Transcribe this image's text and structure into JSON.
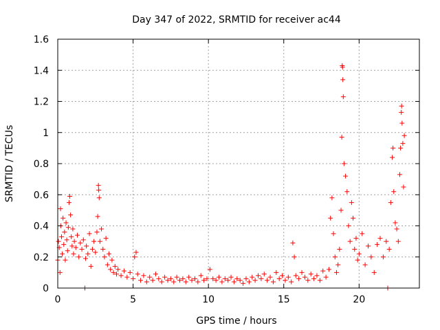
{
  "chart_data": {
    "type": "scatter",
    "title": "Day 347 of 2022, SRMTID for receiver ac44",
    "xlabel": "GPS time / hours",
    "ylabel": "SRMTID / TECUs",
    "xlim": [
      0,
      24
    ],
    "ylim": [
      0,
      1.6
    ],
    "x_ticks": [
      0,
      5,
      10,
      15,
      20
    ],
    "x_tick_labels": [
      "0",
      "5",
      "10",
      "15",
      "20"
    ],
    "y_ticks": [
      0,
      0.2,
      0.4,
      0.6,
      0.8,
      1.0,
      1.2,
      1.4,
      1.6
    ],
    "y_tick_labels": [
      "0",
      "0.2",
      "0.4",
      "0.6",
      "0.8",
      "1",
      "1.2",
      "1.4",
      "1.6"
    ],
    "grid": true,
    "marker": "+",
    "series": [
      {
        "name": "SRMTID",
        "color": "#ff0000",
        "points": [
          [
            0.0,
            0.18
          ],
          [
            0.05,
            0.3
          ],
          [
            0.1,
            0.26
          ],
          [
            0.15,
            0.1
          ],
          [
            0.18,
            0.51
          ],
          [
            0.2,
            0.4
          ],
          [
            0.25,
            0.33
          ],
          [
            0.3,
            0.22
          ],
          [
            0.35,
            0.45
          ],
          [
            0.4,
            0.28
          ],
          [
            0.45,
            0.36
          ],
          [
            0.5,
            0.18
          ],
          [
            0.55,
            0.42
          ],
          [
            0.6,
            0.31
          ],
          [
            0.65,
            0.24
          ],
          [
            0.7,
            0.39
          ],
          [
            0.75,
            0.55
          ],
          [
            0.8,
            0.59
          ],
          [
            0.85,
            0.47
          ],
          [
            0.9,
            0.33
          ],
          [
            0.95,
            0.27
          ],
          [
            1.0,
            0.38
          ],
          [
            1.05,
            0.22
          ],
          [
            1.1,
            0.3
          ],
          [
            1.2,
            0.26
          ],
          [
            1.3,
            0.34
          ],
          [
            1.4,
            0.2
          ],
          [
            1.5,
            0.29
          ],
          [
            1.6,
            0.25
          ],
          [
            1.7,
            0.31
          ],
          [
            1.8,
            0.0
          ],
          [
            1.85,
            0.19
          ],
          [
            1.9,
            0.27
          ],
          [
            2.0,
            0.22
          ],
          [
            2.1,
            0.35
          ],
          [
            2.2,
            0.14
          ],
          [
            2.3,
            0.25
          ],
          [
            2.4,
            0.3
          ],
          [
            2.5,
            0.23
          ],
          [
            2.6,
            0.36
          ],
          [
            2.65,
            0.46
          ],
          [
            2.7,
            0.66
          ],
          [
            2.72,
            0.63
          ],
          [
            2.75,
            0.58
          ],
          [
            2.8,
            0.3
          ],
          [
            2.9,
            0.38
          ],
          [
            3.0,
            0.25
          ],
          [
            3.1,
            0.2
          ],
          [
            3.2,
            0.32
          ],
          [
            3.3,
            0.15
          ],
          [
            3.4,
            0.22
          ],
          [
            3.5,
            0.12
          ],
          [
            3.6,
            0.18
          ],
          [
            3.7,
            0.1
          ],
          [
            3.8,
            0.14
          ],
          [
            3.9,
            0.09
          ],
          [
            4.0,
            0.12
          ],
          [
            4.2,
            0.08
          ],
          [
            4.4,
            0.11
          ],
          [
            4.6,
            0.07
          ],
          [
            4.8,
            0.1
          ],
          [
            5.0,
            0.06
          ],
          [
            5.1,
            0.2
          ],
          [
            5.2,
            0.23
          ],
          [
            5.3,
            0.09
          ],
          [
            5.5,
            0.05
          ],
          [
            5.7,
            0.08
          ],
          [
            5.9,
            0.04
          ],
          [
            6.1,
            0.07
          ],
          [
            6.3,
            0.05
          ],
          [
            6.5,
            0.09
          ],
          [
            6.7,
            0.06
          ],
          [
            6.9,
            0.04
          ],
          [
            7.1,
            0.07
          ],
          [
            7.3,
            0.05
          ],
          [
            7.5,
            0.06
          ],
          [
            7.7,
            0.04
          ],
          [
            7.9,
            0.07
          ],
          [
            8.1,
            0.05
          ],
          [
            8.3,
            0.06
          ],
          [
            8.5,
            0.04
          ],
          [
            8.7,
            0.07
          ],
          [
            8.9,
            0.05
          ],
          [
            9.1,
            0.06
          ],
          [
            9.3,
            0.04
          ],
          [
            9.5,
            0.08
          ],
          [
            9.7,
            0.05
          ],
          [
            9.9,
            0.06
          ],
          [
            10.1,
            0.12
          ],
          [
            10.3,
            0.06
          ],
          [
            10.5,
            0.05
          ],
          [
            10.7,
            0.07
          ],
          [
            10.9,
            0.04
          ],
          [
            11.1,
            0.06
          ],
          [
            11.3,
            0.05
          ],
          [
            11.5,
            0.07
          ],
          [
            11.7,
            0.04
          ],
          [
            11.9,
            0.06
          ],
          [
            12.1,
            0.05
          ],
          [
            12.3,
            0.03
          ],
          [
            12.5,
            0.06
          ],
          [
            12.7,
            0.04
          ],
          [
            12.9,
            0.07
          ],
          [
            13.1,
            0.05
          ],
          [
            13.3,
            0.08
          ],
          [
            13.5,
            0.06
          ],
          [
            13.7,
            0.09
          ],
          [
            13.9,
            0.05
          ],
          [
            14.1,
            0.07
          ],
          [
            14.3,
            0.04
          ],
          [
            14.5,
            0.1
          ],
          [
            14.7,
            0.06
          ],
          [
            14.9,
            0.08
          ],
          [
            15.1,
            0.05
          ],
          [
            15.3,
            0.07
          ],
          [
            15.5,
            0.04
          ],
          [
            15.6,
            0.29
          ],
          [
            15.7,
            0.2
          ],
          [
            15.8,
            0.08
          ],
          [
            16.0,
            0.06
          ],
          [
            16.2,
            0.1
          ],
          [
            16.4,
            0.07
          ],
          [
            16.6,
            0.05
          ],
          [
            16.8,
            0.09
          ],
          [
            17.0,
            0.06
          ],
          [
            17.2,
            0.08
          ],
          [
            17.4,
            0.05
          ],
          [
            17.6,
            0.11
          ],
          [
            17.8,
            0.07
          ],
          [
            18.0,
            0.12
          ],
          [
            18.1,
            0.45
          ],
          [
            18.2,
            0.58
          ],
          [
            18.3,
            0.35
          ],
          [
            18.4,
            0.2
          ],
          [
            18.5,
            0.1
          ],
          [
            18.6,
            0.15
          ],
          [
            18.7,
            0.25
          ],
          [
            18.8,
            0.5
          ],
          [
            18.85,
            0.97
          ],
          [
            18.88,
            1.43
          ],
          [
            18.9,
            1.42
          ],
          [
            18.92,
            1.34
          ],
          [
            18.95,
            1.23
          ],
          [
            19.0,
            0.8
          ],
          [
            19.1,
            0.72
          ],
          [
            19.2,
            0.62
          ],
          [
            19.3,
            0.4
          ],
          [
            19.4,
            0.3
          ],
          [
            19.5,
            0.55
          ],
          [
            19.6,
            0.45
          ],
          [
            19.7,
            0.25
          ],
          [
            19.8,
            0.32
          ],
          [
            19.9,
            0.18
          ],
          [
            20.0,
            0.22
          ],
          [
            20.2,
            0.35
          ],
          [
            20.4,
            0.15
          ],
          [
            20.6,
            0.27
          ],
          [
            20.8,
            0.2
          ],
          [
            21.0,
            0.1
          ],
          [
            21.2,
            0.28
          ],
          [
            21.4,
            0.32
          ],
          [
            21.6,
            0.2
          ],
          [
            21.8,
            0.3
          ],
          [
            21.9,
            0.0
          ],
          [
            22.0,
            0.25
          ],
          [
            22.1,
            0.55
          ],
          [
            22.2,
            0.84
          ],
          [
            22.25,
            0.9
          ],
          [
            22.3,
            0.62
          ],
          [
            22.4,
            0.42
          ],
          [
            22.5,
            0.38
          ],
          [
            22.6,
            0.3
          ],
          [
            22.7,
            0.73
          ],
          [
            22.75,
            0.9
          ],
          [
            22.8,
            1.13
          ],
          [
            22.82,
            1.17
          ],
          [
            22.85,
            1.06
          ],
          [
            22.9,
            0.93
          ],
          [
            22.95,
            0.65
          ],
          [
            23.0,
            0.98
          ]
        ]
      }
    ]
  }
}
